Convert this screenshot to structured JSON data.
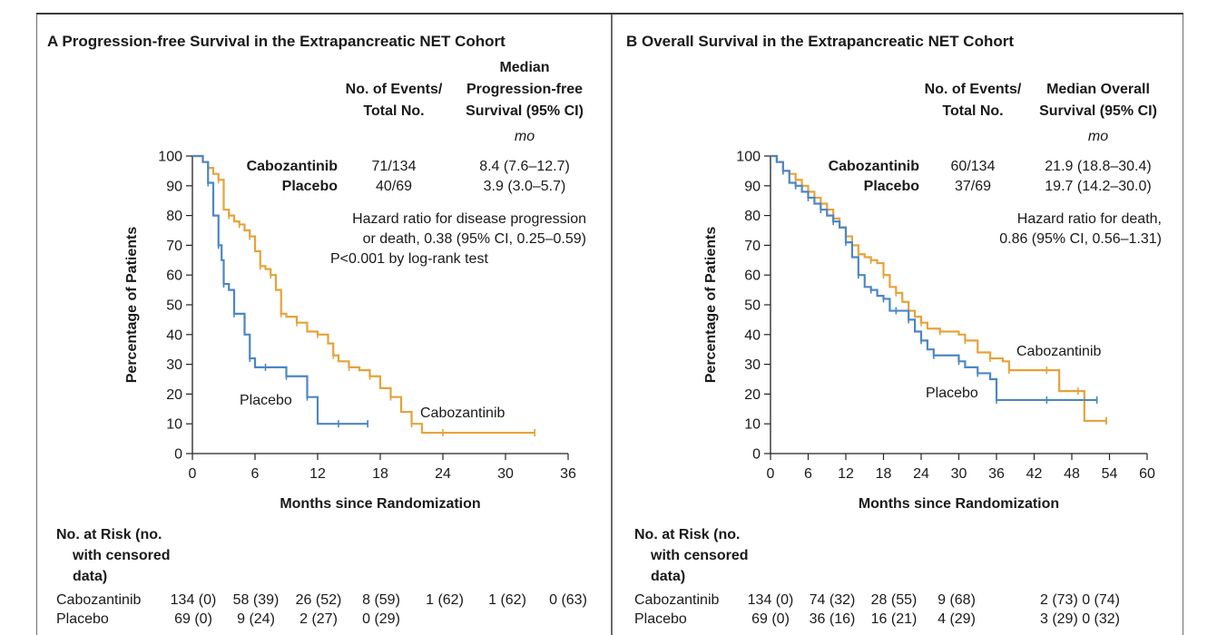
{
  "panels": [
    {
      "letter": "A",
      "title": "Progression-free Survival in the Extrapancreatic NET Cohort",
      "events_header": [
        "No. of Events/",
        "Total No."
      ],
      "median_header": [
        "Median",
        "Progression-free",
        "Survival (95% CI)"
      ],
      "unit": "mo",
      "rows": [
        {
          "name": "Cabozantinib",
          "events": "71/134",
          "median": "8.4 (7.6–12.7)"
        },
        {
          "name": "Placebo",
          "events": "40/69",
          "median": "3.9 (3.0–5.7)"
        }
      ],
      "hazard_lines": [
        "Hazard ratio for disease progression",
        "or death, 0.38 (95% CI, 0.25–0.59)",
        "P<0.001 by log-rank test"
      ],
      "ylabel": "Percentage of Patients",
      "xlabel": "Months since Randomization",
      "curve_labels": {
        "cabozantinib": "Cabozantinib",
        "placebo": "Placebo"
      },
      "risk": {
        "title": [
          "No. at Risk (no.",
          "with censored",
          "data)"
        ],
        "cabozantinib": [
          "134 (0)",
          "58 (39)",
          "26 (52)",
          "8 (59)",
          "1 (62)",
          "1 (62)",
          "0 (63)"
        ],
        "placebo": [
          "69 (0)",
          "9 (24)",
          "2 (27)",
          "0 (29)"
        ]
      }
    },
    {
      "letter": "B",
      "title": "Overall Survival in the Extrapancreatic NET Cohort",
      "events_header": [
        "No. of Events/",
        "Total No."
      ],
      "median_header": [
        "Median Overall",
        "Survival (95% CI)"
      ],
      "unit": "mo",
      "rows": [
        {
          "name": "Cabozantinib",
          "events": "60/134",
          "median": "21.9 (18.8–30.4)"
        },
        {
          "name": "Placebo",
          "events": "37/69",
          "median": "19.7 (14.2–30.0)"
        }
      ],
      "hazard_lines": [
        "Hazard ratio for death,",
        "0.86 (95% CI, 0.56–1.31)"
      ],
      "ylabel": "Percentage of Patients",
      "xlabel": "Months since Randomization",
      "curve_labels": {
        "cabozantinib": "Cabozantinib",
        "placebo": "Placebo"
      },
      "risk": {
        "title": [
          "No. at Risk (no.",
          "with censored",
          "data)"
        ],
        "cabozantinib": [
          "134 (0)",
          "74 (32)",
          "28 (55)",
          "9 (68)",
          "2 (73) 0 (74)"
        ],
        "placebo": [
          "69 (0)",
          "36 (16)",
          "16 (21)",
          "4 (29)",
          "3 (29) 0 (32)"
        ]
      }
    }
  ],
  "colors": {
    "cabozantinib": "#E5A33A",
    "placebo": "#4C86C6"
  },
  "chart_data": [
    {
      "type": "line",
      "title": "Progression-free Survival in the Extrapancreatic NET Cohort",
      "xlabel": "Months since Randomization",
      "ylabel": "Percentage of Patients",
      "xlim": [
        0,
        36
      ],
      "ylim": [
        0,
        100
      ],
      "xticks": [
        0,
        6,
        12,
        18,
        24,
        30,
        36
      ],
      "yticks": [
        0,
        10,
        20,
        30,
        40,
        50,
        60,
        70,
        80,
        90,
        100
      ],
      "series": [
        {
          "name": "Cabozantinib",
          "step": true,
          "x": [
            0,
            1,
            1.5,
            2,
            2.5,
            3,
            3.5,
            4,
            4.5,
            5,
            5.5,
            6,
            6.5,
            7,
            7.5,
            8,
            8.5,
            9,
            10,
            11,
            12,
            13,
            13.5,
            14,
            15,
            16,
            17,
            18,
            19,
            20,
            21,
            22,
            24,
            30,
            32.8
          ],
          "y": [
            100,
            98,
            96,
            94,
            92,
            82,
            80,
            78,
            77,
            75,
            73,
            68,
            63,
            62,
            60,
            55,
            47,
            46,
            44,
            41,
            40,
            37,
            33,
            31,
            29,
            28,
            26,
            22,
            19,
            14,
            10,
            7,
            7,
            7,
            7
          ]
        },
        {
          "name": "Placebo",
          "step": true,
          "x": [
            0,
            1,
            1.5,
            2,
            2.5,
            2.8,
            3,
            3.5,
            4,
            5,
            5.5,
            6,
            7,
            8,
            9,
            10,
            11,
            12,
            14,
            16,
            16.8
          ],
          "y": [
            100,
            98,
            91,
            80,
            70,
            65,
            57,
            55,
            47,
            40,
            32,
            29,
            29,
            29,
            26,
            26,
            19,
            10,
            10,
            10,
            10
          ]
        }
      ]
    },
    {
      "type": "line",
      "title": "Overall Survival in the Extrapancreatic NET Cohort",
      "xlabel": "Months since Randomization",
      "ylabel": "Percentage of Patients",
      "xlim": [
        0,
        60
      ],
      "ylim": [
        0,
        100
      ],
      "xticks": [
        0,
        6,
        12,
        18,
        24,
        30,
        36,
        42,
        48,
        54,
        60
      ],
      "yticks": [
        0,
        10,
        20,
        30,
        40,
        50,
        60,
        70,
        80,
        90,
        100
      ],
      "series": [
        {
          "name": "Cabozantinib",
          "step": true,
          "x": [
            0,
            1,
            2,
            3,
            4,
            5,
            6,
            7,
            8,
            9,
            10,
            11,
            12,
            13,
            14,
            15,
            16,
            17,
            18,
            19,
            20,
            21,
            22,
            23,
            24,
            25,
            27,
            30,
            31,
            33,
            35,
            37,
            38,
            42,
            44,
            46,
            49,
            50,
            53.5
          ],
          "y": [
            100,
            98,
            95,
            94,
            92,
            90,
            88,
            86,
            84,
            82,
            79,
            76,
            73,
            70,
            67,
            66,
            65,
            64,
            60,
            56,
            54,
            51,
            48,
            46,
            44,
            42,
            41,
            40,
            38,
            34,
            32,
            31,
            28,
            28,
            28,
            21,
            21,
            11,
            11
          ]
        },
        {
          "name": "Placebo",
          "step": true,
          "x": [
            0,
            1,
            2,
            3,
            4,
            5,
            6,
            7,
            8,
            9,
            10,
            11,
            12,
            13,
            14,
            15,
            16,
            17,
            18,
            19,
            20,
            21,
            22,
            23,
            24,
            25,
            26,
            28,
            30,
            31,
            33,
            35,
            36,
            38,
            44,
            48,
            52
          ],
          "y": [
            100,
            98,
            95,
            91,
            90,
            88,
            86,
            84,
            82,
            80,
            78,
            76,
            71,
            66,
            60,
            56,
            55,
            53,
            52,
            48,
            48,
            48,
            45,
            41,
            38,
            35,
            33,
            33,
            31,
            29,
            27,
            25,
            18,
            18,
            18,
            18,
            18
          ]
        }
      ]
    }
  ]
}
